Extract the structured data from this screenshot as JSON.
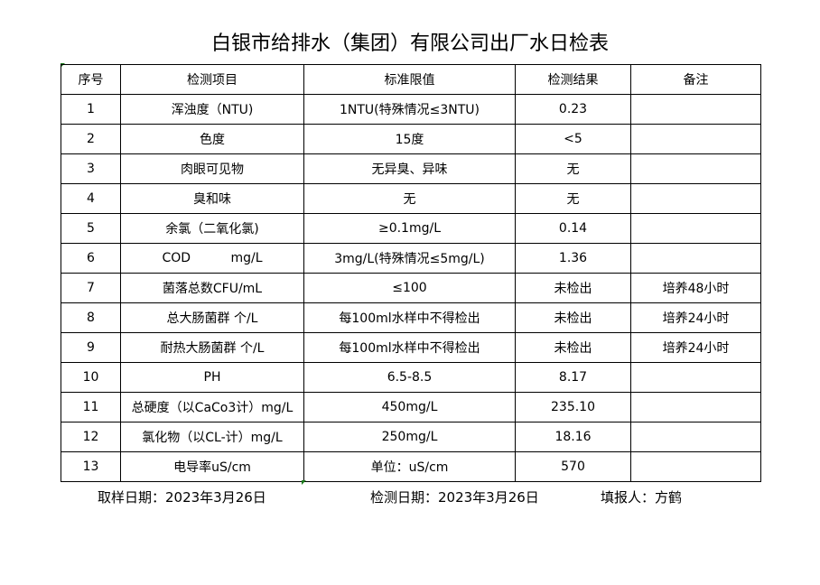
{
  "title": "白银市给排水（集团）有限公司出厂水日检表",
  "headers": [
    "序号",
    "检测项目",
    "标准限值",
    "检测结果",
    "备注"
  ],
  "rows": [
    [
      "1",
      "浑浊度（NTU)",
      "1NTU(特殊情况≤3NTU)",
      "0.23",
      ""
    ],
    [
      "2",
      "色度",
      "15度",
      "<5",
      ""
    ],
    [
      "3",
      "肉眼可见物",
      "无异臭、异味",
      "无",
      ""
    ],
    [
      "4",
      "臭和味",
      "无",
      "无",
      ""
    ],
    [
      "5",
      "余氯（二氧化氯)",
      "≥0.1mg/L",
      "0.14",
      ""
    ],
    [
      "6",
      "COD          mg/L",
      "3mg/L(特殊情况≤5mg/L)",
      "1.36",
      ""
    ],
    [
      "7",
      "菌落总数CFU/mL",
      "≤100",
      "未检出",
      "培养48小时"
    ],
    [
      "8",
      "总大肠菌群 个/L",
      "每100ml水样中不得检出",
      "未检出",
      "培养24小时"
    ],
    [
      "9",
      "耐热大肠菌群 个/L",
      "每100ml水样中不得检出",
      "未检出",
      "培养24小时"
    ],
    [
      "10",
      "PH",
      "6.5-8.5",
      "8.17",
      ""
    ],
    [
      "11",
      "总硬度（以CaCo3计）mg/L",
      "450mg/L",
      "235.10",
      ""
    ],
    [
      "12",
      "氯化物（以CL-计）mg/L",
      "250mg/L",
      "18.16",
      ""
    ],
    [
      "13",
      "电导率uS/cm",
      "单位：uS/cm",
      "570",
      ""
    ]
  ],
  "footer": {
    "sample_date": "取样日期：2023年3月26日",
    "test_date": "检测日期：2023年3月26日",
    "reporter": "填报人：方鹤"
  }
}
